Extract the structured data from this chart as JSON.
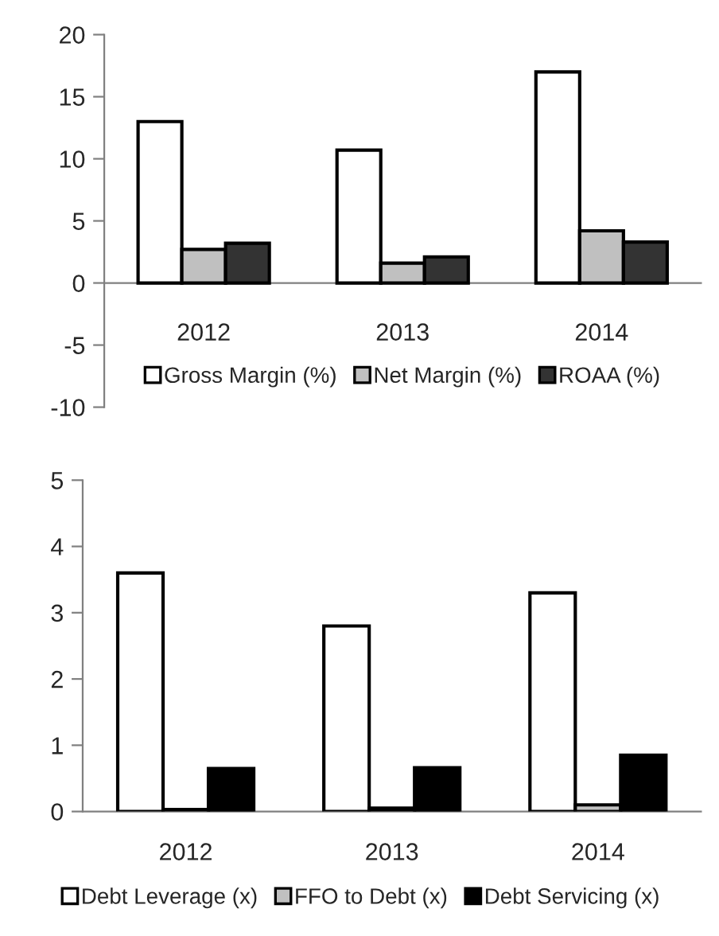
{
  "chart_data": [
    {
      "type": "bar",
      "categories": [
        "2012",
        "2013",
        "2014"
      ],
      "ylim": [
        -10,
        20
      ],
      "yticks": [
        -10,
        -5,
        0,
        5,
        10,
        15,
        20
      ],
      "grid": false,
      "legend": "bottom center",
      "series": [
        {
          "name": "Gross Margin (%)",
          "color": "#ffffff",
          "values": [
            13,
            10.7,
            17
          ]
        },
        {
          "name": "Net Margin (%)",
          "color": "#c0c0c0",
          "values": [
            2.7,
            1.6,
            4.2
          ]
        },
        {
          "name": "ROAA (%)",
          "color": "#333333",
          "values": [
            3.2,
            2.1,
            3.3
          ]
        }
      ]
    },
    {
      "type": "bar",
      "categories": [
        "2012",
        "2013",
        "2014"
      ],
      "ylim": [
        0,
        5
      ],
      "yticks": [
        0,
        1,
        2,
        3,
        4,
        5
      ],
      "grid": false,
      "legend": "bottom",
      "series": [
        {
          "name": "Debt Leverage (x)",
          "color": "#ffffff",
          "values": [
            3.6,
            2.8,
            3.3
          ]
        },
        {
          "name": "FFO to Debt (x)",
          "color": "#c0c0c0",
          "values": [
            0.03,
            0.05,
            0.1
          ]
        },
        {
          "name": "Debt Servicing (x)",
          "color": "#000000",
          "values": [
            0.65,
            0.66,
            0.85
          ]
        }
      ]
    }
  ]
}
